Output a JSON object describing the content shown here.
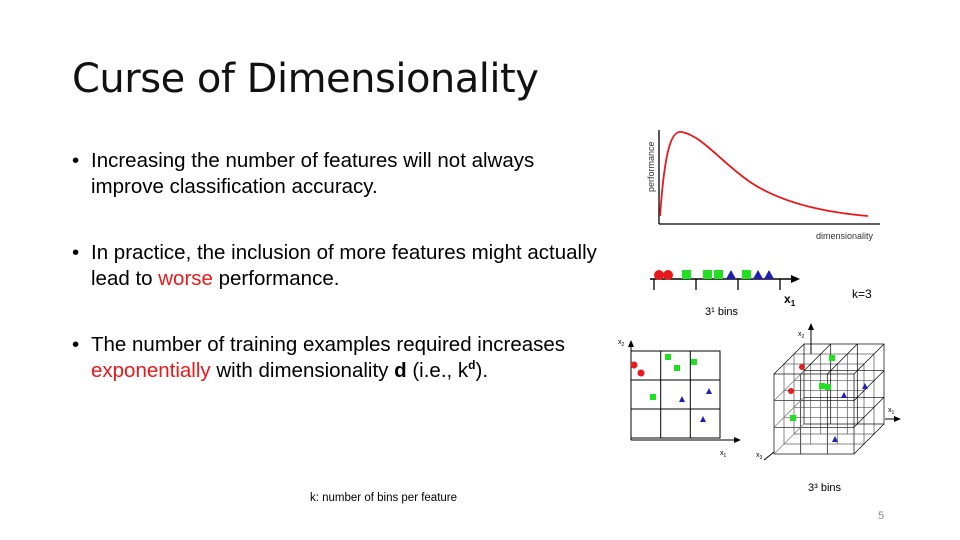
{
  "slide": {
    "title": "Curse of Dimensionality",
    "page_number": "5"
  },
  "bullets": [
    {
      "text": "Increasing the number of features will not always improve classification accuracy."
    },
    {
      "pre": "In practice, the inclusion of more features might actually lead to ",
      "highlight": "worse",
      "post": " performance."
    },
    {
      "pre": "The number of training examples required increases ",
      "highlight": "exponentially",
      "mid": " with dimensionality ",
      "bold": "d",
      "paren_open": " (i.e., k",
      "sup": "d",
      "paren_close": ")."
    }
  ],
  "bullet_symbol": "•",
  "figures": {
    "curve": {
      "ylabel": "performance",
      "xlabel": "dimensionality",
      "line_color": "#e8191c"
    },
    "one_d": {
      "axis_label": "x",
      "axis_sub": "1",
      "caption": "3¹ bins",
      "k_label": "k=3"
    },
    "two_d": {
      "x_label": "x",
      "x_sub": "1",
      "y_label": "x",
      "y_sub": "2"
    },
    "three_d": {
      "caption": "3³ bins",
      "x1": "x",
      "x1_sub": "1",
      "x2": "x",
      "x2_sub": "2",
      "x3": "x",
      "x3_sub": "3"
    },
    "colors": {
      "red": "#e8191c",
      "green": "#21e021",
      "blue": "#1f1fb4"
    }
  },
  "footnote": "k: number of bins per feature"
}
